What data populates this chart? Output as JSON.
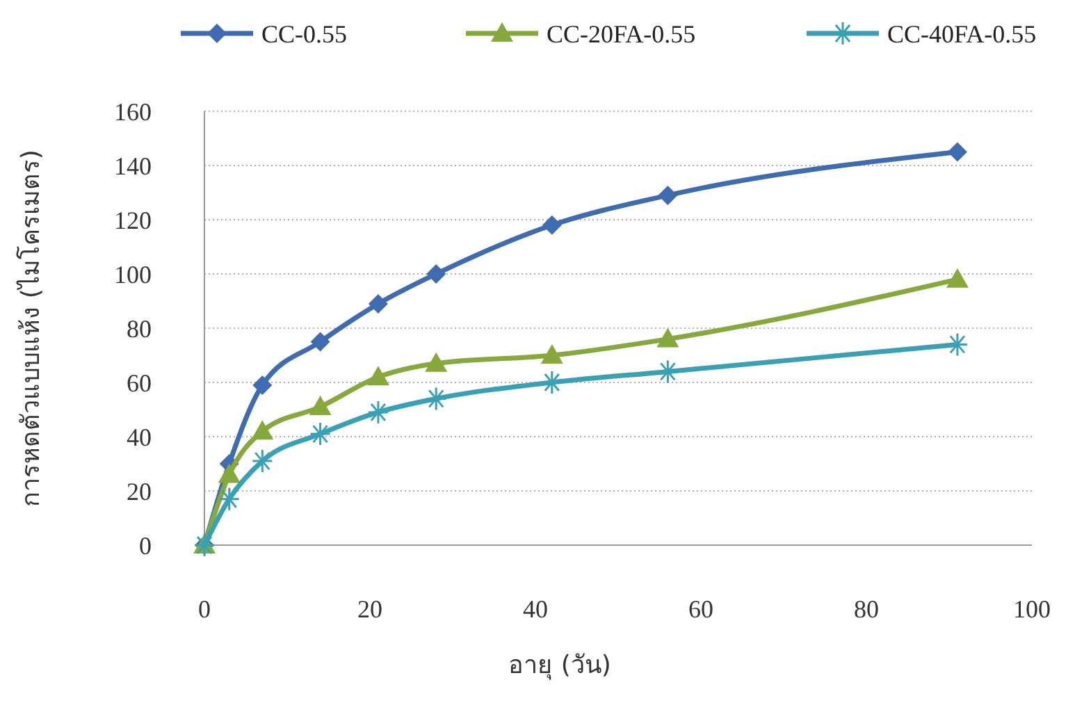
{
  "chart_data": {
    "type": "line",
    "xlabel": "อายุ (วัน)",
    "ylabel": "การหดตัวแบบแห้ง (ไมโครเมตร)",
    "x": [
      0,
      3,
      7,
      14,
      21,
      28,
      42,
      56,
      91
    ],
    "xlim": [
      0,
      100
    ],
    "xticks": [
      0,
      20,
      40,
      60,
      80,
      100
    ],
    "ylim": [
      0,
      160
    ],
    "yticks": [
      0,
      20,
      40,
      60,
      80,
      100,
      120,
      140,
      160
    ],
    "grid": "y",
    "legend": "top",
    "series": [
      {
        "name": "CC-0.55",
        "color": "#3f6bb0",
        "marker": "diamond",
        "values": [
          0,
          30,
          59,
          75,
          89,
          100,
          118,
          129,
          145
        ]
      },
      {
        "name": "CC-20FA-0.55",
        "color": "#87a83c",
        "marker": "triangle",
        "values": [
          0,
          26,
          42,
          51,
          62,
          67,
          70,
          76,
          98
        ]
      },
      {
        "name": "CC-40FA-0.55",
        "color": "#3aa0b4",
        "marker": "cross",
        "values": [
          0,
          17,
          31,
          41,
          49,
          54,
          60,
          64,
          74
        ]
      }
    ]
  }
}
